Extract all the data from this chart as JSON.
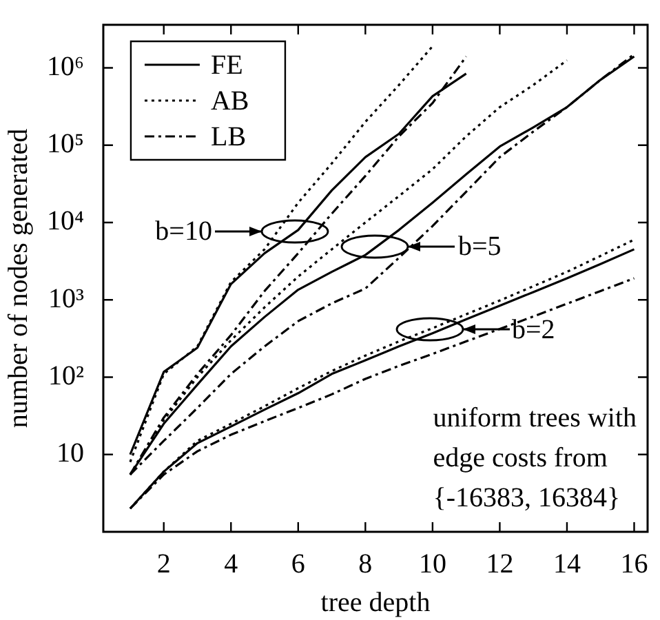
{
  "chart_data": {
    "type": "line",
    "xlabel": "tree depth",
    "ylabel": "number of nodes generated",
    "log": "y",
    "xlim": [
      0.2,
      16.4
    ],
    "xticks": [
      2,
      4,
      6,
      8,
      10,
      12,
      14,
      16
    ],
    "ylim": [
      1,
      3600000
    ],
    "yticks": [
      10,
      {
        "value": 100,
        "label": "10²"
      },
      {
        "value": 1000,
        "label": "10³"
      },
      {
        "value": 10000,
        "label": "10⁴"
      },
      {
        "value": 100000,
        "label": "10⁵"
      },
      {
        "value": 1000000,
        "label": "10⁶"
      }
    ],
    "legend": "top left",
    "marker": "none",
    "x": [
      1,
      2,
      3,
      4,
      5,
      6,
      7,
      8,
      9,
      10,
      11,
      12,
      13,
      14,
      15,
      16
    ],
    "series": [
      {
        "name": "FE",
        "color": "#000000",
        "line_style": "solid",
        "values": [
          10,
          117,
          240,
          1600,
          4000,
          8000,
          26000,
          70000,
          140000,
          430000,
          840000,
          null,
          null,
          null,
          null,
          null
        ]
      },
      {
        "name": "AB",
        "color": "#000000",
        "line_style": "dotted",
        "values": [
          8,
          110,
          250,
          1700,
          4500,
          18000,
          58000,
          200000,
          600000,
          1900000,
          null,
          null,
          null,
          null,
          null,
          null
        ]
      },
      {
        "name": "LB",
        "color": "#000000",
        "line_style": "dashed",
        "values": [
          5.5,
          30,
          110,
          350,
          1300,
          4000,
          13000,
          40000,
          130000,
          350000,
          1400000,
          null,
          null,
          null,
          null,
          null
        ]
      },
      {
        "color": "#000000",
        "line_style": "solid",
        "values": [
          5.5,
          25,
          80,
          250,
          600,
          1350,
          2300,
          3800,
          8000,
          18000,
          42000,
          96000,
          170000,
          310000,
          700000,
          1400000
        ]
      },
      {
        "color": "#000000",
        "line_style": "dotted",
        "values": [
          5.5,
          28,
          100,
          300,
          800,
          2000,
          4500,
          10000,
          22000,
          49000,
          130000,
          310000,
          600000,
          1250000,
          null,
          null
        ]
      },
      {
        "color": "#000000",
        "line_style": "dashed",
        "values": [
          5.5,
          15,
          40,
          110,
          250,
          530,
          900,
          1400,
          3500,
          9000,
          25000,
          70000,
          150000,
          310000,
          700000,
          1500000
        ]
      },
      {
        "color": "#000000",
        "line_style": "solid",
        "values": [
          2,
          6,
          14,
          23,
          38,
          62,
          110,
          165,
          250,
          370,
          560,
          840,
          1260,
          1900,
          2900,
          4500
        ]
      },
      {
        "color": "#000000",
        "line_style": "dotted",
        "values": [
          2,
          6,
          15,
          25,
          42,
          72,
          120,
          190,
          290,
          430,
          650,
          980,
          1500,
          2300,
          3700,
          6000
        ]
      },
      {
        "color": "#000000",
        "line_style": "dashed",
        "values": [
          2,
          5.5,
          11,
          18,
          27,
          40,
          60,
          95,
          140,
          200,
          290,
          420,
          610,
          890,
          1300,
          1900
        ]
      }
    ],
    "annotations": [
      {
        "text": "b=10",
        "x": 5.9,
        "y": 7700
      },
      {
        "text": "b=5",
        "x": 8.3,
        "y": 4900
      },
      {
        "text": "b=2",
        "x": 9.9,
        "y": 410
      },
      "uniform trees with\nedge costs from\n{-16383, 16384}"
    ]
  }
}
